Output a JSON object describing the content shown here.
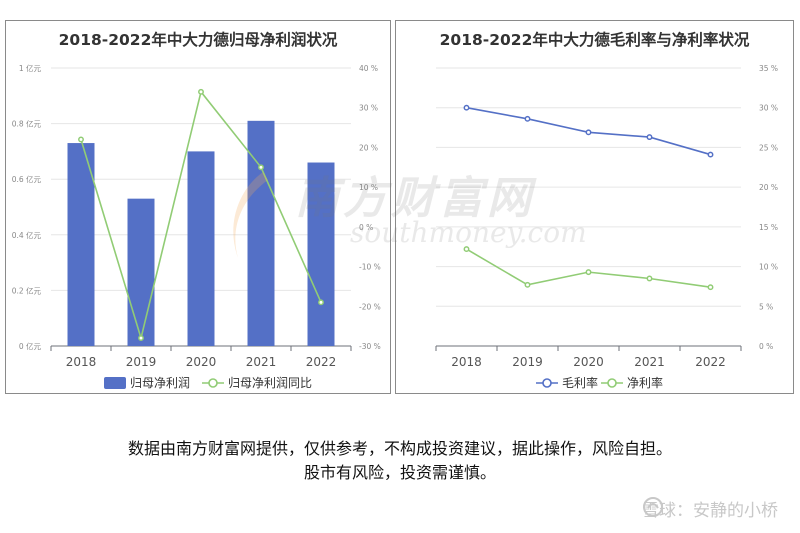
{
  "chart_data": [
    {
      "type": "bar",
      "title": "2018-2022年中大力德归母净利润状况",
      "categories": [
        "2018",
        "2019",
        "2020",
        "2021",
        "2022"
      ],
      "series": [
        {
          "name": "归母净利润",
          "kind": "bar",
          "axis": "left",
          "color": "#5470c6",
          "values": [
            0.73,
            0.53,
            0.7,
            0.81,
            0.66
          ]
        },
        {
          "name": "归母净利润同比",
          "kind": "line",
          "axis": "right",
          "color": "#91cc75",
          "values": [
            22,
            -28,
            34,
            15,
            -19
          ]
        }
      ],
      "y_left": {
        "ticks": [
          "0 亿元",
          "0.2 亿元",
          "0.4 亿元",
          "0.6 亿元",
          "0.8 亿元",
          "1 亿元"
        ],
        "min": 0,
        "max": 1
      },
      "y_right": {
        "ticks": [
          "-30 %",
          "-20 %",
          "-10 %",
          "0 %",
          "10 %",
          "20 %",
          "30 %",
          "40 %"
        ],
        "min": -30,
        "max": 40
      },
      "grid": true,
      "legend": "bottom"
    },
    {
      "type": "line",
      "title": "2018-2022年中大力德毛利率与净利率状况",
      "categories": [
        "2018",
        "2019",
        "2020",
        "2021",
        "2022"
      ],
      "series": [
        {
          "name": "毛利率",
          "color": "#5470c6",
          "values": [
            30.0,
            28.6,
            26.9,
            26.3,
            24.1
          ]
        },
        {
          "name": "净利率",
          "color": "#91cc75",
          "values": [
            12.2,
            7.7,
            9.3,
            8.5,
            7.4
          ]
        }
      ],
      "y_right": {
        "ticks": [
          "0 %",
          "5 %",
          "10 %",
          "15 %",
          "20 %",
          "25 %",
          "30 %",
          "35 %"
        ],
        "min": 0,
        "max": 35
      },
      "grid": true,
      "legend": "bottom"
    }
  ],
  "watermark": {
    "cn": "南方财富网",
    "en": "southmoney.com"
  },
  "disclaimer": {
    "line1": "数据由南方财富网提供，仅供参考，不构成投资建议，据此操作，风险自担。",
    "line2": "股市有风险，投资需谨慎。"
  },
  "corner_brand": {
    "text": "雪球：安静的小桥"
  }
}
